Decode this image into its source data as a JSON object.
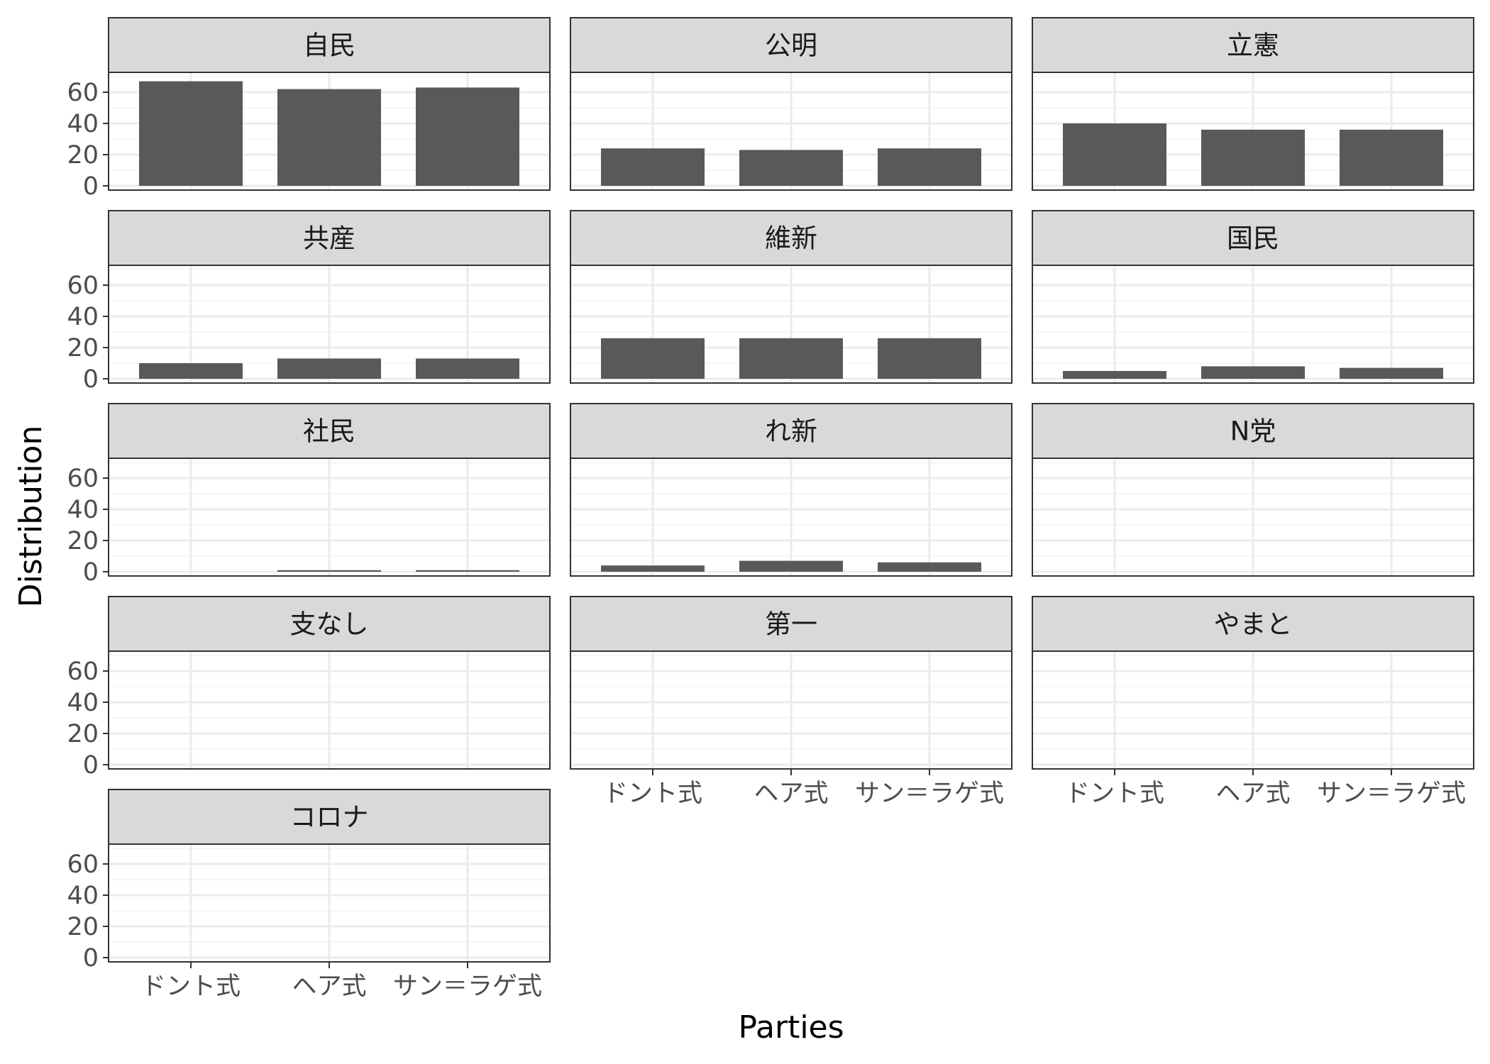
{
  "chart_data": {
    "type": "bar",
    "layout": "facet_wrap",
    "ncol": 3,
    "xlabel": "Parties",
    "ylabel": "Distribution",
    "categories": [
      "ドント式",
      "ヘア式",
      "サン＝ラゲ式"
    ],
    "y_ticks": [
      0,
      20,
      40,
      60
    ],
    "ylim": [
      0,
      70
    ],
    "grid": true,
    "colors": {
      "bar": "#595959",
      "strip_fill": "#d9d9d9",
      "panel_border": "#333333",
      "grid_major": "#ebebeb",
      "grid_minor": "#f3f3f3",
      "tick_text": "#4d4d4d"
    },
    "facets": [
      {
        "label": "自民",
        "values": [
          67,
          62,
          63
        ]
      },
      {
        "label": "公明",
        "values": [
          24,
          23,
          24
        ]
      },
      {
        "label": "立憲",
        "values": [
          40,
          36,
          36
        ]
      },
      {
        "label": "共産",
        "values": [
          10,
          13,
          13
        ]
      },
      {
        "label": "維新",
        "values": [
          26,
          26,
          26
        ]
      },
      {
        "label": "国民",
        "values": [
          5,
          8,
          7
        ]
      },
      {
        "label": "社民",
        "values": [
          0,
          1,
          1
        ]
      },
      {
        "label": "れ新",
        "values": [
          4,
          7,
          6
        ]
      },
      {
        "label": "N党",
        "values": [
          0,
          0,
          0
        ]
      },
      {
        "label": "支なし",
        "values": [
          0,
          0,
          0
        ]
      },
      {
        "label": "第一",
        "values": [
          0,
          0,
          0
        ]
      },
      {
        "label": "やまと",
        "values": [
          0,
          0,
          0
        ]
      },
      {
        "label": "コロナ",
        "values": [
          0,
          0,
          0
        ]
      }
    ]
  }
}
